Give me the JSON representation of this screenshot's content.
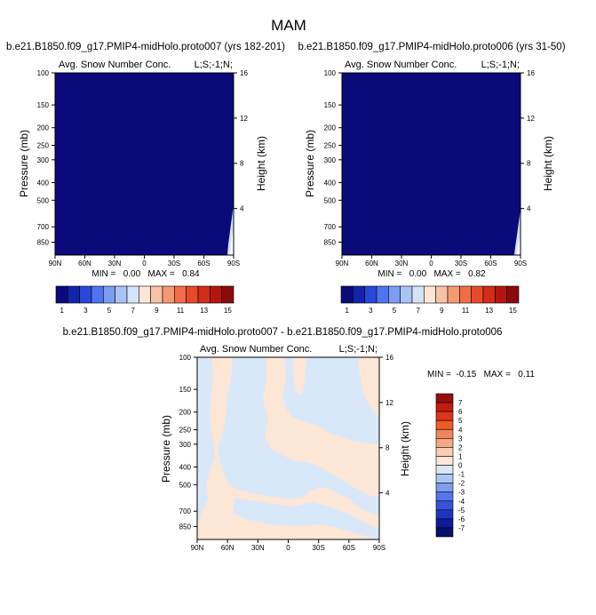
{
  "figure": {
    "title": "MAM"
  },
  "chart_data": [
    {
      "type": "heatmap",
      "title": "b.e21.B1850.f09_g17.PMIP4-midHolo.proto007 (yrs 182-201)",
      "subtitle_left": "Avg. Snow Number Conc.",
      "subtitle_right": "L;S;-1;N;",
      "ylabel": "Pressure (mb)",
      "ylabel_right": "Height (km)",
      "x_ticks": [
        "90N",
        "60N",
        "30N",
        "0",
        "30S",
        "60S",
        "90S"
      ],
      "y_ticks": [
        "100",
        "150",
        "200",
        "250",
        "300",
        "400",
        "500",
        "700",
        "850"
      ],
      "y_ticks_right": [
        "16",
        "12",
        "8",
        "4"
      ],
      "stats": "MIN =   0.00   MAX =   0.84",
      "min": 0.0,
      "max": 0.84,
      "fill_value_bin": 1,
      "colorbar_labels": [
        "1",
        "3",
        "5",
        "7",
        "9",
        "11",
        "13",
        "15"
      ]
    },
    {
      "type": "heatmap",
      "title": "b.e21.B1850.f09_g17.PMIP4-midHolo.proto006 (yrs 31-50)",
      "subtitle_left": "Avg. Snow Number Conc.",
      "subtitle_right": "L;S;-1;N;",
      "ylabel": "Pressure (mb)",
      "ylabel_right": "Height (km)",
      "x_ticks": [
        "90N",
        "60N",
        "30N",
        "0",
        "30S",
        "60S",
        "90S"
      ],
      "y_ticks": [
        "100",
        "150",
        "200",
        "250",
        "300",
        "400",
        "500",
        "700",
        "850"
      ],
      "y_ticks_right": [
        "16",
        "12",
        "8",
        "4"
      ],
      "stats": "MIN =   0.00   MAX =   0.82",
      "min": 0.0,
      "max": 0.82,
      "fill_value_bin": 1,
      "colorbar_labels": [
        "1",
        "3",
        "5",
        "7",
        "9",
        "11",
        "13",
        "15"
      ]
    },
    {
      "type": "heatmap",
      "title": "b.e21.B1850.f09_g17.PMIP4-midHolo.proto007 - b.e21.B1850.f09_g17.PMIP4-midHolo.proto006",
      "subtitle_left": "Avg. Snow Number Conc.",
      "subtitle_right": "L;S;-1;N;",
      "ylabel": "Pressure (mb)",
      "ylabel_right": "Height (km)",
      "x_ticks": [
        "90N",
        "60N",
        "30N",
        "0",
        "30S",
        "60S",
        "90S"
      ],
      "y_ticks": [
        "100",
        "150",
        "200",
        "250",
        "300",
        "400",
        "500",
        "700",
        "850"
      ],
      "y_ticks_right": [
        "16",
        "12",
        "8",
        "4"
      ],
      "stats": "MIN =  -0.15   MAX =   0.11",
      "min": -0.15,
      "max": 0.11,
      "colorbar_labels": [
        "7",
        "6",
        "5",
        "4",
        "3",
        "2",
        "1",
        "0",
        "-1",
        "-2",
        "-3",
        "-4",
        "-5",
        "-6",
        "-7"
      ]
    }
  ],
  "colors": {
    "seq_colorbar": [
      "#0a0a7a",
      "#1225a8",
      "#2a48d8",
      "#4e74ef",
      "#7b9df2",
      "#a9c3f5",
      "#d3e3f8",
      "#fde6d6",
      "#f6c3a4",
      "#f39a72",
      "#ef6e48",
      "#e54a2a",
      "#d32c18",
      "#b5150e",
      "#8c0a0a"
    ],
    "diff_colorbar": [
      "#9a0c0c",
      "#c41b12",
      "#e0351a",
      "#ef5a28",
      "#f3835a",
      "#f5a884",
      "#f8ccb4",
      "#fde6d6",
      "#d8e8f8",
      "#aac7f4",
      "#7e9ff0",
      "#5576ea",
      "#3553dc",
      "#1f35bf",
      "#0c1a9a",
      "#05106e"
    ],
    "diff_positive": "#fde6d6",
    "diff_negative": "#d8e8f8"
  }
}
